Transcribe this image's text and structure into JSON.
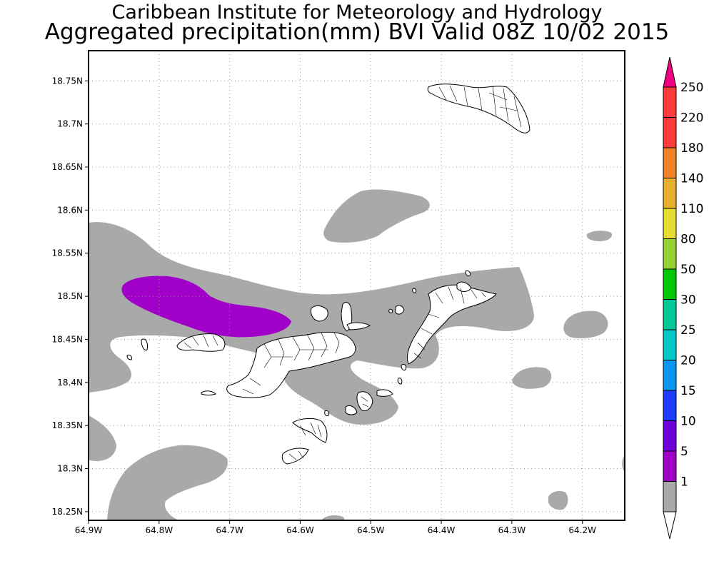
{
  "title": {
    "line1": "Caribbean Institute for Meteorology and Hydrology",
    "line2": "Aggregated precipitation(mm) BVI Valid 08Z 10/02 2015"
  },
  "map": {
    "lon_range": [
      -64.9,
      -64.14
    ],
    "lat_range": [
      18.24,
      18.785
    ],
    "lon_ticks": [
      {
        "value": -64.9,
        "label": "64.9W"
      },
      {
        "value": -64.8,
        "label": "64.8W"
      },
      {
        "value": -64.7,
        "label": "64.7W"
      },
      {
        "value": -64.6,
        "label": "64.6W"
      },
      {
        "value": -64.5,
        "label": "64.5W"
      },
      {
        "value": -64.4,
        "label": "64.4W"
      },
      {
        "value": -64.3,
        "label": "64.3W"
      },
      {
        "value": -64.2,
        "label": "64.2W"
      }
    ],
    "lat_ticks": [
      {
        "value": 18.25,
        "label": "18.25N"
      },
      {
        "value": 18.3,
        "label": "18.3N"
      },
      {
        "value": 18.35,
        "label": "18.35N"
      },
      {
        "value": 18.4,
        "label": "18.4N"
      },
      {
        "value": 18.45,
        "label": "18.45N"
      },
      {
        "value": 18.5,
        "label": "18.5N"
      },
      {
        "value": 18.55,
        "label": "18.55N"
      },
      {
        "value": 18.6,
        "label": "18.6N"
      },
      {
        "value": 18.65,
        "label": "18.65N"
      },
      {
        "value": 18.7,
        "label": "18.7N"
      },
      {
        "value": 18.75,
        "label": "18.75N"
      }
    ],
    "grid": true,
    "colors": {
      "light_rain": "#a9a9a9",
      "moderate_rain": "#a000c8",
      "land": "#ffffff",
      "border": "#000000"
    }
  },
  "colorbar": {
    "levels": [
      {
        "label": "1",
        "color": "#ffffff"
      },
      {
        "label": "5",
        "color": "#a9a9a9"
      },
      {
        "label": "10",
        "color": "#a000c8"
      },
      {
        "label": "15",
        "color": "#6e00dc"
      },
      {
        "label": "20",
        "color": "#1e3cff"
      },
      {
        "label": "25",
        "color": "#0a96f0"
      },
      {
        "label": "30",
        "color": "#00c8c8"
      },
      {
        "label": "50",
        "color": "#00c896"
      },
      {
        "label": "80",
        "color": "#00c800"
      },
      {
        "label": "110",
        "color": "#96d232"
      },
      {
        "label": "140",
        "color": "#e6dc32"
      },
      {
        "label": "180",
        "color": "#e6af2d"
      },
      {
        "label": "220",
        "color": "#f08228"
      },
      {
        "label": "250",
        "color": "#fa3c3c"
      }
    ],
    "top_triangle_color": "#f00082",
    "bottom_triangle_color": "#ffffff"
  }
}
